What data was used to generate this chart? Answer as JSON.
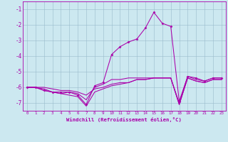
{
  "xlabel": "Windchill (Refroidissement éolien,°C)",
  "bg_color": "#cce8f0",
  "grid_color": "#99bbcc",
  "line_color": "#aa00aa",
  "xlim": [
    -0.5,
    23.5
  ],
  "ylim": [
    -7.5,
    -0.5
  ],
  "yticks": [
    -7,
    -6,
    -5,
    -4,
    -3,
    -2,
    -1
  ],
  "xticks": [
    0,
    1,
    2,
    3,
    4,
    5,
    6,
    7,
    8,
    9,
    10,
    11,
    12,
    13,
    14,
    15,
    16,
    17,
    18,
    19,
    20,
    21,
    22,
    23
  ],
  "x": [
    0,
    1,
    2,
    3,
    4,
    5,
    6,
    7,
    8,
    9,
    10,
    11,
    12,
    13,
    14,
    15,
    16,
    17,
    18,
    19,
    20,
    21,
    22,
    23
  ],
  "curves": [
    [
      -6.0,
      -6.0,
      -6.2,
      -6.3,
      -6.3,
      -6.3,
      -6.5,
      -7.1,
      -5.9,
      -5.7,
      -3.9,
      -3.4,
      -3.1,
      -2.9,
      -2.2,
      -1.2,
      -1.9,
      -2.1,
      -6.9,
      -5.3,
      -5.4,
      -5.6,
      -5.4,
      -5.4
    ],
    [
      -6.0,
      -6.0,
      -6.1,
      -6.3,
      -6.4,
      -6.3,
      -6.4,
      -6.8,
      -6.0,
      -5.8,
      -5.5,
      -5.5,
      -5.4,
      -5.4,
      -5.4,
      -5.4,
      -5.4,
      -5.4,
      -7.0,
      -5.3,
      -5.5,
      -5.6,
      -5.4,
      -5.4
    ],
    [
      -6.0,
      -6.0,
      -6.0,
      -6.1,
      -6.2,
      -6.2,
      -6.3,
      -6.5,
      -6.1,
      -6.0,
      -5.8,
      -5.7,
      -5.7,
      -5.5,
      -5.5,
      -5.4,
      -5.4,
      -5.4,
      -7.1,
      -5.4,
      -5.6,
      -5.7,
      -5.5,
      -5.5
    ],
    [
      -6.0,
      -6.0,
      -6.2,
      -6.3,
      -6.4,
      -6.5,
      -6.6,
      -7.2,
      -6.3,
      -6.1,
      -5.9,
      -5.8,
      -5.7,
      -5.5,
      -5.5,
      -5.4,
      -5.4,
      -5.4,
      -7.1,
      -5.4,
      -5.6,
      -5.7,
      -5.5,
      -5.5
    ]
  ],
  "marker_curve_idx": 0,
  "figsize": [
    3.2,
    2.0
  ],
  "dpi": 100
}
